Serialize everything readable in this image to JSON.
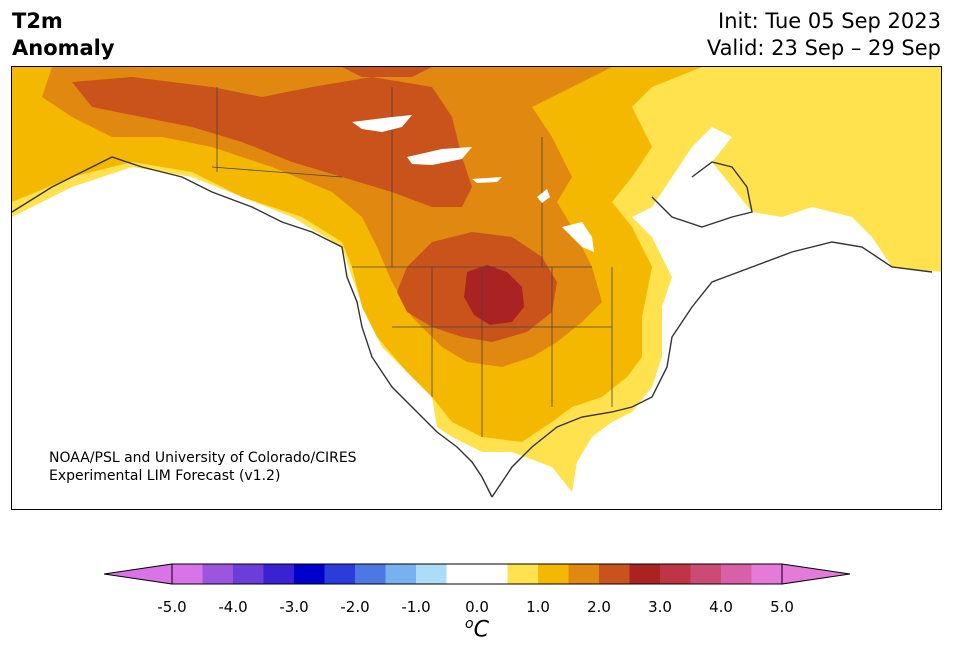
{
  "title": {
    "variable_line1": "T2m",
    "variable_line2": "Anomaly",
    "init": "Init: Tue 05 Sep 2023",
    "valid": "Valid: 23 Sep – 29 Sep"
  },
  "credit": {
    "line1": "NOAA/PSL and University of Colorado/CIRES",
    "line2": "Experimental LIM Forecast (v1.2)"
  },
  "colorbar": {
    "unit_base": "C",
    "unit_sup": "o",
    "ticks": [
      "-5.0",
      "-4.0",
      "-3.0",
      "-2.0",
      "-1.0",
      "0.0",
      "1.0",
      "2.0",
      "3.0",
      "4.0",
      "5.0"
    ],
    "levels": [
      -5.0,
      -4.5,
      -4.0,
      -3.5,
      -3.0,
      -2.5,
      -2.0,
      -1.5,
      -1.0,
      -0.5,
      0.5,
      1.0,
      1.5,
      2.0,
      2.5,
      3.0,
      3.5,
      4.0,
      4.5,
      5.0
    ],
    "colors": [
      "#d873e8",
      "#9c55de",
      "#6b3ddb",
      "#3a21d4",
      "#0000cd",
      "#2a3ddb",
      "#4d78e4",
      "#78b1f0",
      "#acdcf7",
      "#ffffff",
      "#ffe24d",
      "#f5b800",
      "#e08810",
      "#c9531a",
      "#ab2222",
      "#c03545",
      "#cc4a75",
      "#d960a8",
      "#e57ad8"
    ],
    "extend_low_color": "#d873e8",
    "extend_high_color": "#e57ad8"
  },
  "map_regions": [
    {
      "name": "anomaly-0.5-1.0",
      "color": "#ffe24d"
    },
    {
      "name": "anomaly-1.0-1.5",
      "color": "#f5b800"
    },
    {
      "name": "anomaly-1.5-2.0",
      "color": "#e08810"
    },
    {
      "name": "anomaly-2.0-2.5",
      "color": "#c9531a"
    },
    {
      "name": "anomaly-2.5-3.0",
      "color": "#ab2222"
    }
  ]
}
